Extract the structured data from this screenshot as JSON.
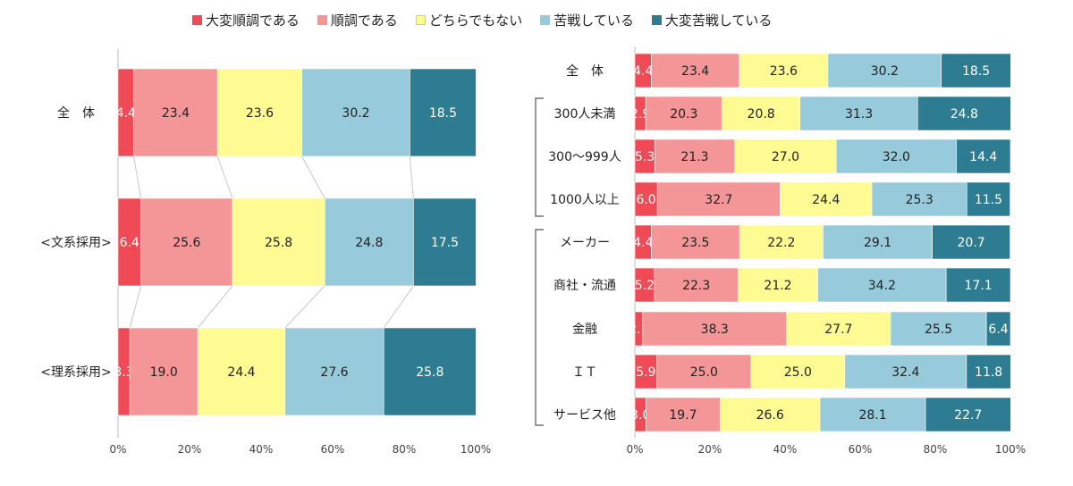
{
  "legend": [
    {
      "label": "大変順調である",
      "color": "#EF4A55"
    },
    {
      "label": "順調である",
      "color": "#F49598"
    },
    {
      "label": "どちらでもない",
      "color": "#FEFB92"
    },
    {
      "label": "苦戦している",
      "color": "#97CADB"
    },
    {
      "label": "大変苦戦している",
      "color": "#2E7C92"
    }
  ],
  "chart_data": [
    {
      "type": "bar",
      "orientation": "horizontal",
      "stacked": true,
      "xlim": [
        0,
        100
      ],
      "x_ticks": [
        "0%",
        "20%",
        "40%",
        "60%",
        "80%",
        "100%"
      ],
      "categories": [
        "全　体",
        "<文系採用>",
        "<理系採用>"
      ],
      "series": [
        {
          "name": "大変順調である",
          "values": [
            4.4,
            6.4,
            3.3
          ]
        },
        {
          "name": "順調である",
          "values": [
            23.4,
            25.6,
            19.0
          ]
        },
        {
          "name": "どちらでもない",
          "values": [
            23.6,
            25.8,
            24.4
          ]
        },
        {
          "name": "苦戦している",
          "values": [
            30.2,
            24.8,
            27.6
          ]
        },
        {
          "name": "大変苦戦している",
          "values": [
            18.5,
            17.5,
            25.8
          ]
        }
      ],
      "value_labels": [
        [
          "4.4",
          "23.4",
          "23.6",
          "30.2",
          "18.5"
        ],
        [
          "6.4",
          "25.6",
          "25.8",
          "24.8",
          "17.5"
        ],
        [
          "3.3",
          "19.0",
          "24.4",
          "27.6",
          "25.8"
        ]
      ]
    },
    {
      "type": "bar",
      "orientation": "horizontal",
      "stacked": true,
      "xlim": [
        0,
        100
      ],
      "x_ticks": [
        "0%",
        "20%",
        "40%",
        "60%",
        "80%",
        "100%"
      ],
      "categories": [
        "全　体",
        "300人未満",
        "300〜999人",
        "1000人以上",
        "メーカー",
        "商社・流通",
        "金融",
        "ＩＴ",
        "サービス他"
      ],
      "series": [
        {
          "name": "大変順調である",
          "values": [
            4.4,
            2.9,
            5.3,
            6.0,
            4.4,
            5.2,
            2.1,
            5.9,
            3.0
          ]
        },
        {
          "name": "順調である",
          "values": [
            23.4,
            20.3,
            21.3,
            32.7,
            23.5,
            22.3,
            38.3,
            25.0,
            19.7
          ]
        },
        {
          "name": "どちらでもない",
          "values": [
            23.6,
            20.8,
            27.0,
            24.4,
            22.2,
            21.2,
            27.7,
            25.0,
            26.6
          ]
        },
        {
          "name": "苦戦している",
          "values": [
            30.2,
            31.3,
            32.0,
            25.3,
            29.1,
            34.2,
            25.5,
            32.4,
            28.1
          ]
        },
        {
          "name": "大変苦戦している",
          "values": [
            18.5,
            24.8,
            14.4,
            11.5,
            20.7,
            17.1,
            6.4,
            11.8,
            22.7
          ]
        }
      ],
      "value_labels": [
        [
          "4.4",
          "23.4",
          "23.6",
          "30.2",
          "18.5"
        ],
        [
          "2.9",
          "20.3",
          "20.8",
          "31.3",
          "24.8"
        ],
        [
          "5.3",
          "21.3",
          "27.0",
          "32.0",
          "14.4"
        ],
        [
          "6.0",
          "32.7",
          "24.4",
          "25.3",
          "11.5"
        ],
        [
          "4.4",
          "23.5",
          "22.2",
          "29.1",
          "20.7"
        ],
        [
          "5.2",
          "22.3",
          "21.2",
          "34.2",
          "17.1"
        ],
        [
          "2.1",
          "38.3",
          "27.7",
          "25.5",
          "6.4"
        ],
        [
          "5.9",
          "25.0",
          "25.0",
          "32.4",
          "11.8"
        ],
        [
          "3.0",
          "19.7",
          "26.6",
          "28.1",
          "22.7"
        ]
      ]
    }
  ]
}
